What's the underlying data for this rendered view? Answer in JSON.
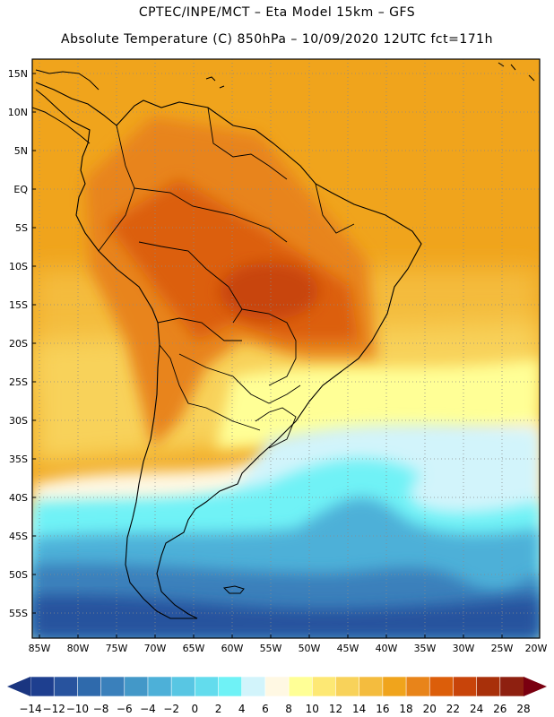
{
  "header": {
    "line1": "CPTEC/INPE/MCT –  Eta Model 15km – GFS",
    "line2": "Absolute Temperature (C) 850hPa – 10/09/2020 12UTC fct=171h"
  },
  "map": {
    "lat_labels": [
      "15N",
      "10N",
      "5N",
      "EQ",
      "5S",
      "10S",
      "15S",
      "20S",
      "25S",
      "30S",
      "35S",
      "40S",
      "45S",
      "50S",
      "55S"
    ],
    "lat_values": [
      15,
      10,
      5,
      0,
      -5,
      -10,
      -15,
      -20,
      -25,
      -30,
      -35,
      -40,
      -45,
      -50,
      -55
    ],
    "lon_labels": [
      "85W",
      "80W",
      "75W",
      "70W",
      "65W",
      "60W",
      "55W",
      "50W",
      "45W",
      "40W",
      "35W",
      "30W",
      "25W",
      "20W"
    ],
    "lon_values": [
      -85,
      -80,
      -75,
      -70,
      -65,
      -60,
      -55,
      -50,
      -45,
      -40,
      -35,
      -30,
      -25,
      -20
    ]
  },
  "colorbar": {
    "labels": [
      "-14",
      "-12",
      "-10",
      "-8",
      "-6",
      "-4",
      "-2",
      "0",
      "2",
      "4",
      "6",
      "8",
      "10",
      "12",
      "14",
      "16",
      "18",
      "20",
      "22",
      "24",
      "26",
      "28"
    ],
    "colors": [
      "#1e3f8f",
      "#28539e",
      "#2f6aac",
      "#3a80bb",
      "#4398c8",
      "#4db0d8",
      "#58c6e3",
      "#63dced",
      "#6ff2f6",
      "#d2f4fb",
      "#fff8e3",
      "#ffff96",
      "#fde874",
      "#f8d25a",
      "#f4bc3e",
      "#f0a41c",
      "#e8841a",
      "#dc5e0a",
      "#c8440a",
      "#a8300a",
      "#8e2010"
    ],
    "under_color": "#1a3580",
    "over_color": "#7a0010"
  }
}
